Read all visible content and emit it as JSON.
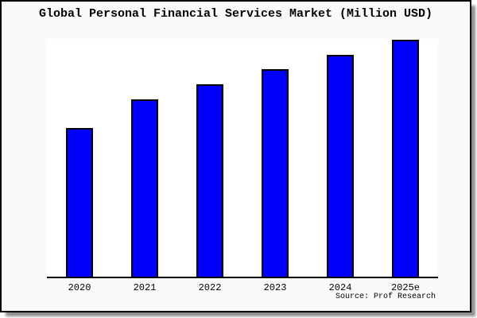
{
  "chart_data": {
    "type": "bar",
    "title": "Global Personal Financial Services Market (Million USD)",
    "categories": [
      "2020",
      "2021",
      "2022",
      "2023",
      "2024",
      "2025e"
    ],
    "relative_values": [
      62.4,
      74.7,
      81.1,
      87.4,
      93.3,
      99.7
    ],
    "values_note": "No y-axis scale or data labels are shown in the image; values are estimated bar heights as percent of plot height (2025e = ~100).",
    "xlabel": "",
    "ylabel": "",
    "ylim": [
      0,
      100
    ],
    "grid": false,
    "legend": "none",
    "source": "Source: Prof Research",
    "bar_color": "#0000fa",
    "bar_border_color": "#000000"
  },
  "colors": {
    "panel_background": "#fafafa",
    "plot_background": "#ffffff",
    "frame_border": "#000000",
    "axis_line": "#000000",
    "drop_shadow": "#8f8f8f",
    "text": "#000000"
  }
}
